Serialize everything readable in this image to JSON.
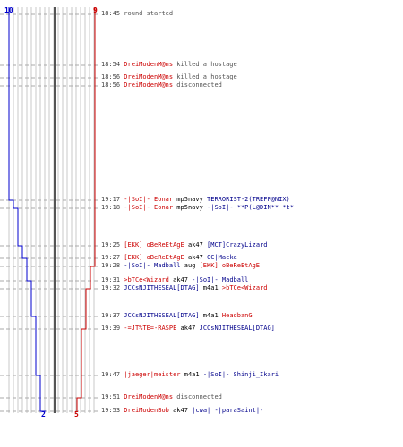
{
  "teams": {
    "blue": {
      "start_count": "10",
      "end_count": "2",
      "color": "#0000cc"
    },
    "red": {
      "start_count": "9",
      "end_count": "5",
      "color": "#cc0000"
    }
  },
  "events": [
    {
      "time": "18:45",
      "parts": [
        {
          "text": "round started",
          "style": "gray"
        }
      ]
    },
    {
      "time": "18:54",
      "parts": [
        {
          "text": "DreiModenM@ns",
          "style": "red"
        },
        {
          "text": " killed a hostage",
          "style": "gray"
        }
      ]
    },
    {
      "time": "18:56",
      "parts": [
        {
          "text": "DreiModenM@ns",
          "style": "red"
        },
        {
          "text": " killed a hostage",
          "style": "gray"
        }
      ]
    },
    {
      "time": "18:56",
      "parts": [
        {
          "text": "DreiModenM@ns",
          "style": "red"
        },
        {
          "text": " disconnected",
          "style": "gray"
        }
      ]
    },
    {
      "time": "19:17",
      "parts": [
        {
          "text": "-|SoI|- Eonar",
          "style": "red"
        },
        {
          "text": " mp5navy ",
          "style": "dark"
        },
        {
          "text": "TERRORIST-2(TREFF@NIX)",
          "style": "blue"
        }
      ]
    },
    {
      "time": "19:18",
      "parts": [
        {
          "text": "-|SoI|- Eonar",
          "style": "red"
        },
        {
          "text": " mp5navy ",
          "style": "dark"
        },
        {
          "text": "-|SoI|- **P(L@DIN** *t*",
          "style": "blue"
        }
      ]
    },
    {
      "time": "19:25",
      "parts": [
        {
          "text": "[EKK] oBeReEtAgE",
          "style": "red"
        },
        {
          "text": " ak47 ",
          "style": "dark"
        },
        {
          "text": "[MCT]CrazyLizard",
          "style": "blue"
        }
      ]
    },
    {
      "time": "19:27",
      "parts": [
        {
          "text": "[EKK] oBeReEtAgE",
          "style": "red"
        },
        {
          "text": " ak47 ",
          "style": "dark"
        },
        {
          "text": "CC|Macke",
          "style": "blue"
        }
      ]
    },
    {
      "time": "19:28",
      "parts": [
        {
          "text": "-|SoI|- Madball",
          "style": "blue"
        },
        {
          "text": " aug ",
          "style": "dark"
        },
        {
          "text": "[EKK] oBeReEtAgE",
          "style": "red"
        }
      ]
    },
    {
      "time": "19:31",
      "parts": [
        {
          "text": ">bTCe<Wizard",
          "style": "red"
        },
        {
          "text": " ak47 ",
          "style": "dark"
        },
        {
          "text": "-|SoI|- Madball",
          "style": "blue"
        }
      ]
    },
    {
      "time": "19:32",
      "parts": [
        {
          "text": "JCCsNJITHESEAL[DTAG]",
          "style": "blue"
        },
        {
          "text": " m4a1 ",
          "style": "dark"
        },
        {
          "text": ">bTCe<Wizard",
          "style": "red"
        }
      ]
    },
    {
      "time": "19:37",
      "parts": [
        {
          "text": "JCCsNJITHESEAL[DTAG]",
          "style": "blue"
        },
        {
          "text": " m4a1 ",
          "style": "dark"
        },
        {
          "text": "HeadbanG",
          "style": "red"
        }
      ]
    },
    {
      "time": "19:39",
      "parts": [
        {
          "text": "-=JT%TE=-RASPE",
          "style": "red"
        },
        {
          "text": " ak47 ",
          "style": "dark"
        },
        {
          "text": "JCCsNJITHESEAL[DTAG]",
          "style": "blue"
        }
      ]
    },
    {
      "time": "19:47",
      "parts": [
        {
          "text": "|jaeger|meister",
          "style": "red"
        },
        {
          "text": " m4a1 ",
          "style": "dark"
        },
        {
          "text": "-|SoI|- Shinji_Ikari",
          "style": "blue"
        }
      ]
    },
    {
      "time": "19:51",
      "parts": [
        {
          "text": "DreiModenM@ns",
          "style": "red"
        },
        {
          "text": " disconnected",
          "style": "gray"
        }
      ]
    },
    {
      "time": "19:53",
      "parts": [
        {
          "text": "DreiModenBob",
          "style": "red"
        },
        {
          "text": " ak47 ",
          "style": "dark"
        },
        {
          "text": "|cwa| -|paraSaint|-",
          "style": "blue"
        }
      ]
    }
  ]
}
